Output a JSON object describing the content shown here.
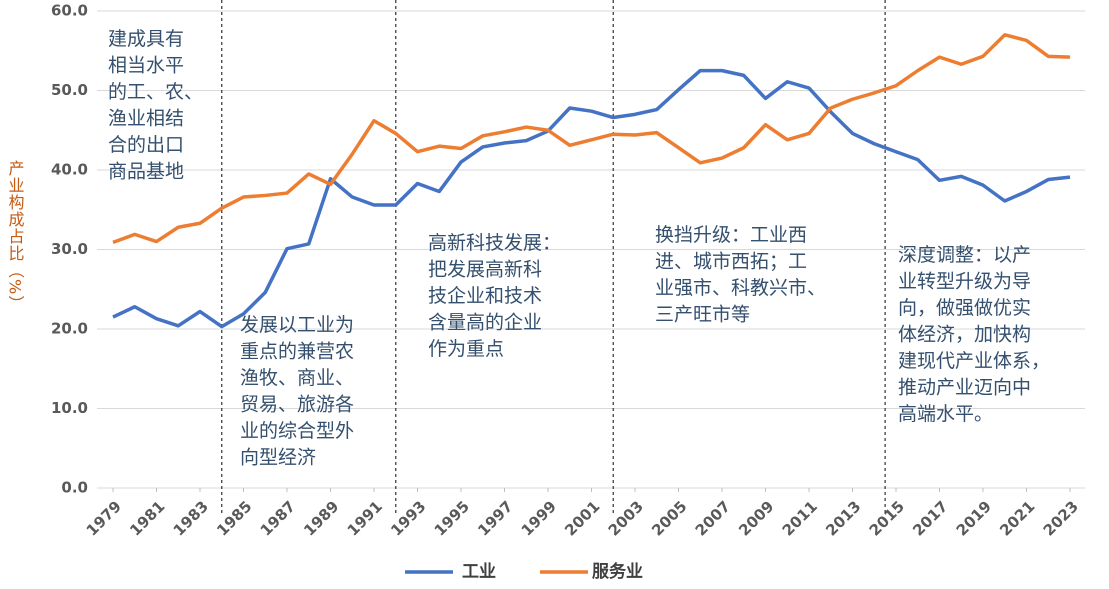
{
  "chart_data": {
    "type": "line",
    "y_label": "产业构成占比（%）",
    "x": [
      1979,
      1980,
      1981,
      1982,
      1983,
      1984,
      1985,
      1986,
      1987,
      1988,
      1989,
      1990,
      1991,
      1992,
      1993,
      1994,
      1995,
      1996,
      1997,
      1998,
      1999,
      2000,
      2001,
      2002,
      2003,
      2004,
      2005,
      2006,
      2007,
      2008,
      2009,
      2010,
      2011,
      2012,
      2013,
      2014,
      2015,
      2016,
      2017,
      2018,
      2019,
      2020,
      2021,
      2022,
      2023
    ],
    "xlim": [
      1979,
      2023
    ],
    "xticks": [
      1979,
      1981,
      1983,
      1985,
      1987,
      1989,
      1991,
      1993,
      1995,
      1997,
      1999,
      2001,
      2003,
      2005,
      2007,
      2009,
      2011,
      2013,
      2015,
      2017,
      2019,
      2021,
      2023
    ],
    "ylim": [
      0,
      60
    ],
    "yticks": [
      {
        "value": 0,
        "label": "0.0"
      },
      {
        "value": 10,
        "label": "10.0"
      },
      {
        "value": 20,
        "label": "20.0"
      },
      {
        "value": 30,
        "label": "30.0"
      },
      {
        "value": 40,
        "label": "40.0"
      },
      {
        "value": 50,
        "label": "50.0"
      },
      {
        "value": 60,
        "label": "60.0"
      }
    ],
    "grid": true,
    "series": [
      {
        "name": "工业",
        "color": "#4472c4",
        "values": [
          21.5,
          22.8,
          21.3,
          20.4,
          22.2,
          20.3,
          21.9,
          24.6,
          30.1,
          30.7,
          38.9,
          36.6,
          35.6,
          35.6,
          38.3,
          37.3,
          41.0,
          42.9,
          43.4,
          43.7,
          44.9,
          47.8,
          47.4,
          46.6,
          47.0,
          47.6,
          50.1,
          52.5,
          52.5,
          51.9,
          49.0,
          51.1,
          50.3,
          47.3,
          44.6,
          43.3,
          42.3,
          41.3,
          38.7,
          39.2,
          38.1,
          36.1,
          37.3,
          38.8,
          39.1
        ]
      },
      {
        "name": "服务业",
        "color": "#ed7d31",
        "values": [
          30.9,
          31.9,
          31.0,
          32.8,
          33.3,
          35.2,
          36.6,
          36.8,
          37.1,
          39.5,
          38.2,
          42.0,
          46.2,
          44.6,
          42.3,
          43.0,
          42.7,
          44.3,
          44.8,
          45.4,
          45.0,
          43.1,
          43.8,
          44.5,
          44.4,
          44.7,
          42.8,
          40.9,
          41.5,
          42.8,
          45.7,
          43.8,
          44.6,
          47.8,
          48.9,
          49.7,
          50.6,
          52.5,
          54.2,
          53.3,
          54.3,
          57.0,
          56.3,
          54.3,
          54.2
        ]
      }
    ],
    "dividers": [
      1984,
      1992,
      2002,
      2014.5
    ],
    "annotations": [
      [
        "建成具有",
        "相当水平",
        "的工、农、",
        "渔业相结",
        "合的出口",
        "商品基地"
      ],
      [
        "发展以工业为",
        "重点的兼营农",
        "渔牧、商业、",
        "贸易、旅游各",
        "业的综合型外",
        "向型经济"
      ],
      [
        "高新科技发展：",
        "把发展高新科",
        "技企业和技术",
        "含量高的企业",
        "作为重点"
      ],
      [
        "换挡升级：工业西",
        "进、城市西拓；工",
        "业强市、科教兴市、",
        "三产旺市等"
      ],
      [
        "深度调整：以产",
        "业转型升级为导",
        "向，做强做优实",
        "体经济，加快构",
        "建现代产业体系，",
        "推动产业迈向中",
        "高端水平。"
      ]
    ]
  }
}
